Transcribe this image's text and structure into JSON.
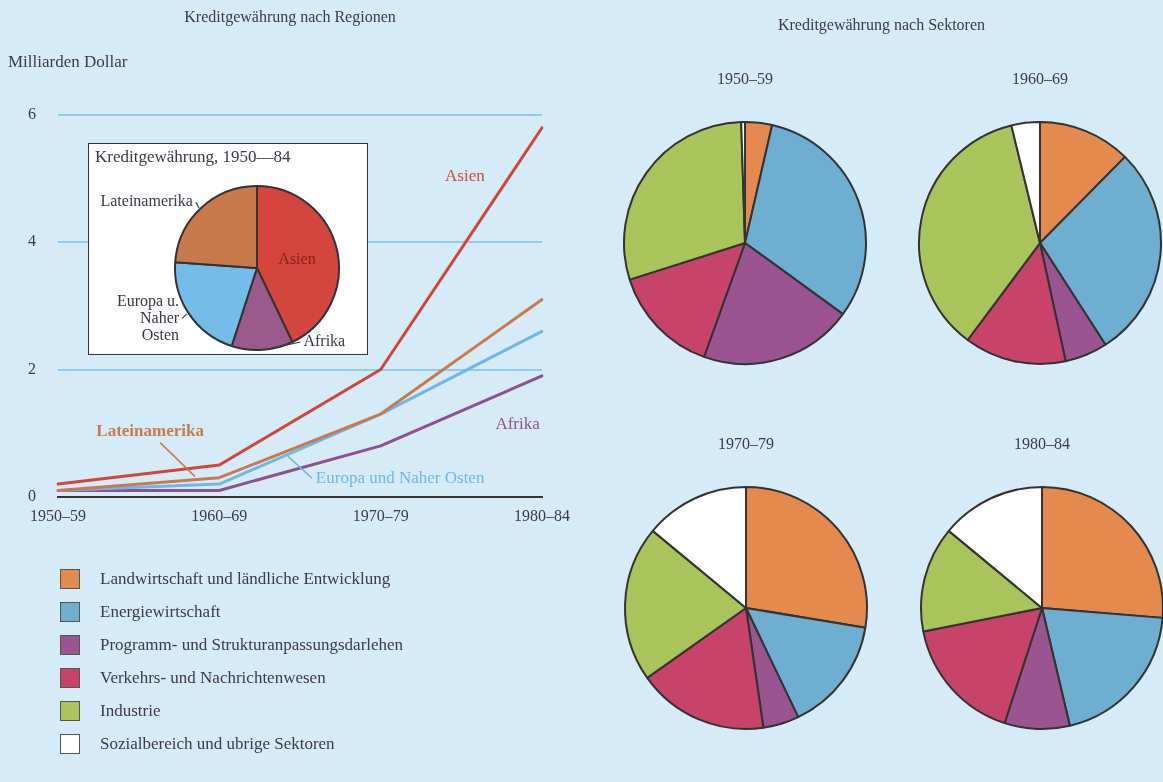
{
  "chart_data": [
    {
      "type": "line",
      "title": "Kreditgewährung nach Regionen",
      "ylabel": "Milliarden Dollar",
      "categories": [
        "1950–59",
        "1960–69",
        "1970–79",
        "1980–84"
      ],
      "ylim": [
        0,
        6
      ],
      "yticks": [
        0,
        2,
        4,
        6
      ],
      "grid": "y",
      "marker": "none",
      "series": [
        {
          "name": "Asien",
          "color": "#d0463a",
          "values": [
            0.2,
            0.5,
            2.0,
            5.8
          ]
        },
        {
          "name": "Lateinamerika",
          "color": "#c97a4c",
          "values": [
            0.1,
            0.3,
            1.3,
            3.1
          ]
        },
        {
          "name": "Europa und Naher Osten",
          "color": "#6cb8e8",
          "values": [
            0.1,
            0.2,
            1.3,
            2.6
          ]
        },
        {
          "name": "Afrika",
          "color": "#8e4f94",
          "values": [
            0.1,
            0.1,
            0.8,
            1.9
          ]
        }
      ]
    },
    {
      "type": "pie",
      "title": "Kreditgewährung, 1950—84",
      "categories": [
        "Asien",
        "Afrika",
        "Europa u. Naher Osten",
        "Lateinamerika"
      ],
      "values": [
        42.9,
        12.1,
        21.1,
        23.9
      ],
      "colors": [
        "#d4453e",
        "#9a5a8c",
        "#74bde9",
        "#c97a4c"
      ]
    },
    {
      "type": "other",
      "title": "Kreditgewährung nach Sektoren"
    },
    {
      "type": "pie",
      "title": "1950–59",
      "legend": "bottom left",
      "categories": [
        "Landwirtschaft und ländliche Entwicklung",
        "Energiewirtschaft",
        "Programm- und Strukturanpassungsdarlehen",
        "Verkehrs- und Nachrichtenwesen",
        "Industrie",
        "Sozialbereich und ubrige Sektoren"
      ],
      "values": [
        3.6,
        31.4,
        20.5,
        14.6,
        29.4,
        0.5
      ],
      "colors": [
        "#e58a4e",
        "#6eaed0",
        "#9a5490",
        "#c8436a",
        "#a8c45a",
        "#ffffff"
      ]
    },
    {
      "type": "pie",
      "title": "1960–69",
      "categories": [
        null,
        null,
        null,
        null,
        null,
        null
      ],
      "values": [
        12.4,
        28.5,
        5.7,
        13.6,
        36.0,
        3.8
      ],
      "colors": [
        "#e58a4e",
        "#6eaed0",
        "#9a5490",
        "#c8436a",
        "#a8c45a",
        "#ffffff"
      ]
    },
    {
      "type": "pie",
      "title": "1970–79",
      "categories": [
        null,
        null,
        null,
        null,
        null,
        null
      ],
      "values": [
        27.6,
        15.3,
        4.8,
        17.5,
        20.8,
        14.0
      ],
      "colors": [
        "#e58a4e",
        "#6eaed0",
        "#9a5490",
        "#c8436a",
        "#a8c45a",
        "#ffffff"
      ]
    },
    {
      "type": "pie",
      "title": "1980–84",
      "categories": [
        null,
        null,
        null,
        null,
        null,
        null
      ],
      "values": [
        26.3,
        20.0,
        8.7,
        16.9,
        14.1,
        14.0
      ],
      "colors": [
        "#e58a4e",
        "#6eaed0",
        "#9a5490",
        "#c8436a",
        "#a8c45a",
        "#ffffff"
      ]
    }
  ]
}
